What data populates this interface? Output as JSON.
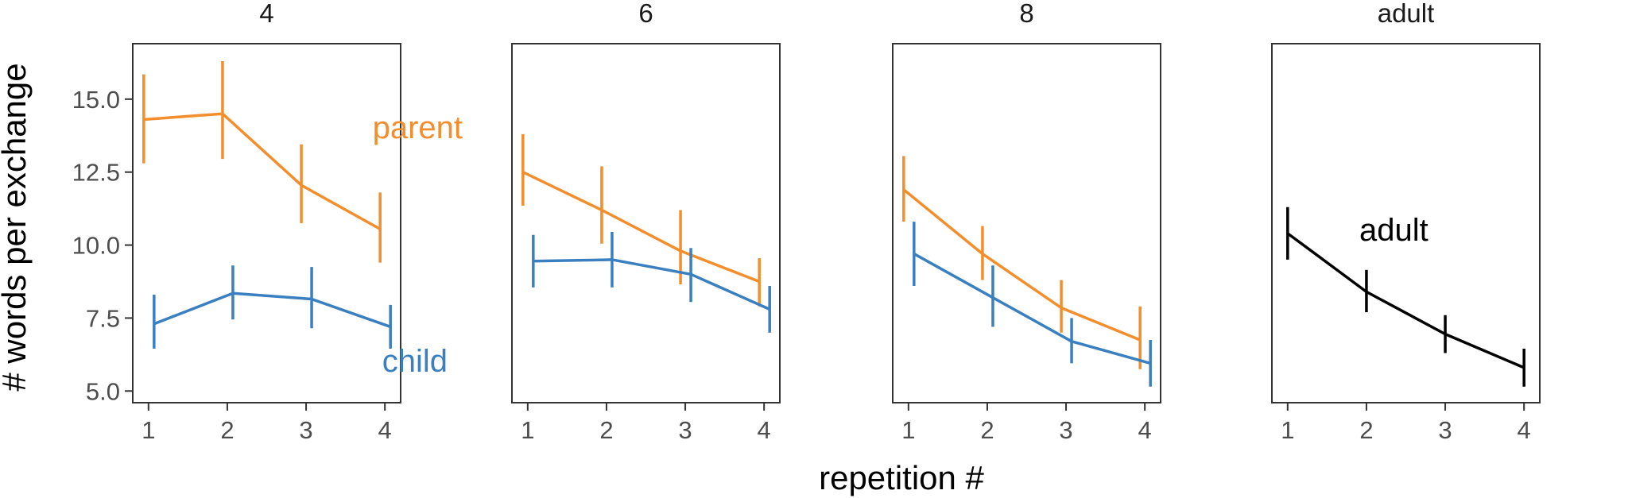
{
  "chart_data": {
    "type": "line",
    "facet_variable_values": [
      "4",
      "6",
      "8",
      "adult"
    ],
    "xlabel": "repetition #",
    "ylabel": "# words per exchange",
    "x_ticks": [
      "1",
      "2",
      "3",
      "4"
    ],
    "y_ticks": [
      "5.0",
      "7.5",
      "10.0",
      "12.5",
      "15.0"
    ],
    "ylim": [
      4.6,
      16.9
    ],
    "xlim": [
      0.8,
      4.2
    ],
    "grid": false,
    "legend": "none (direct labels)",
    "colors": {
      "parent": "#f28e2b",
      "child": "#3a7fbf",
      "adult": "#000000"
    },
    "panels": [
      {
        "title": "4",
        "series": [
          {
            "name": "parent",
            "label": "parent",
            "x": [
              1,
              2,
              3,
              4
            ],
            "y": [
              14.3,
              14.5,
              12.05,
              10.55
            ],
            "ymin": [
              12.8,
              12.95,
              10.75,
              9.4
            ],
            "ymax": [
              15.85,
              16.3,
              13.45,
              11.8
            ]
          },
          {
            "name": "child",
            "label": "child",
            "x": [
              1,
              2,
              3,
              4
            ],
            "y": [
              7.3,
              8.35,
              8.15,
              7.2
            ],
            "ymin": [
              6.45,
              7.45,
              7.15,
              6.45
            ],
            "ymax": [
              8.3,
              9.3,
              9.25,
              7.95
            ]
          }
        ]
      },
      {
        "title": "6",
        "series": [
          {
            "name": "parent",
            "x": [
              1,
              2,
              3,
              4
            ],
            "y": [
              12.5,
              11.2,
              9.8,
              8.75
            ],
            "ymin": [
              11.35,
              10.05,
              8.65,
              7.9
            ],
            "ymax": [
              13.8,
              12.7,
              11.2,
              9.55
            ]
          },
          {
            "name": "child",
            "x": [
              1,
              2,
              3,
              4
            ],
            "y": [
              9.45,
              9.5,
              9.0,
              7.8
            ],
            "ymin": [
              8.55,
              8.55,
              8.05,
              7.0
            ],
            "ymax": [
              10.35,
              10.45,
              9.9,
              8.6
            ]
          }
        ]
      },
      {
        "title": "8",
        "series": [
          {
            "name": "parent",
            "x": [
              1,
              2,
              3,
              4
            ],
            "y": [
              11.9,
              9.7,
              7.85,
              6.75
            ],
            "ymin": [
              10.8,
              8.8,
              7.0,
              5.75
            ],
            "ymax": [
              13.05,
              10.65,
              8.8,
              7.9
            ]
          },
          {
            "name": "child",
            "x": [
              1,
              2,
              3,
              4
            ],
            "y": [
              9.7,
              8.2,
              6.7,
              5.95
            ],
            "ymin": [
              8.6,
              7.2,
              5.95,
              5.15
            ],
            "ymax": [
              10.8,
              9.3,
              7.5,
              6.75
            ]
          }
        ]
      },
      {
        "title": "adult",
        "series": [
          {
            "name": "adult",
            "label": "adult",
            "x": [
              1,
              2,
              3,
              4
            ],
            "y": [
              10.4,
              8.4,
              6.95,
              5.8
            ],
            "ymin": [
              9.5,
              7.7,
              6.3,
              5.15
            ],
            "ymax": [
              11.3,
              9.15,
              7.6,
              6.45
            ]
          }
        ]
      }
    ]
  }
}
